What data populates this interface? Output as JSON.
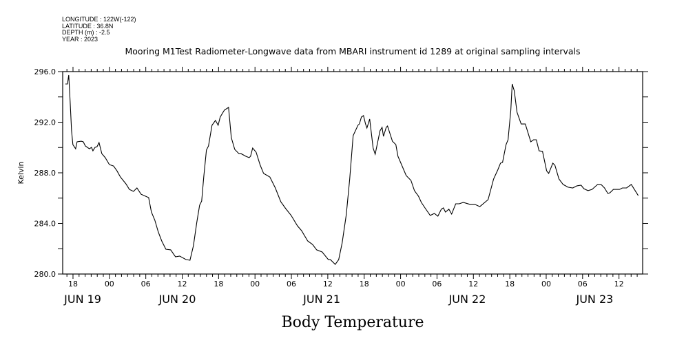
{
  "meta": {
    "longitude": "LONGITUDE : 122W(-122)",
    "latitude": "LATITUDE : 36.8N",
    "depth": "DEPTH (m) : -2.5",
    "year": "YEAR : 2023"
  },
  "chart_data": {
    "type": "line",
    "title": "Mooring M1Test Radiometer-Longwave data from MBARI instrument id 1289 at original sampling intervals",
    "xlabel": "Body Temperature",
    "ylabel": "Kelvin",
    "x_units": "hours since Jun 19 00:00, 2023",
    "xlim": [
      16.3,
      111.9
    ],
    "ylim": [
      280,
      296
    ],
    "line_color": "#000000",
    "y_ticks": [
      {
        "value": 280,
        "label": "280.0"
      },
      {
        "value": 284,
        "label": "284.0"
      },
      {
        "value": 288,
        "label": "288.0"
      },
      {
        "value": 292,
        "label": "292.0"
      },
      {
        "value": 296,
        "label": "296.0"
      }
    ],
    "x_ticks": [
      {
        "value": 18,
        "label": "18"
      },
      {
        "value": 24,
        "label": "00"
      },
      {
        "value": 30,
        "label": "06"
      },
      {
        "value": 36,
        "label": "12"
      },
      {
        "value": 42,
        "label": "18"
      },
      {
        "value": 48,
        "label": "00"
      },
      {
        "value": 54,
        "label": "06"
      },
      {
        "value": 60,
        "label": "12"
      },
      {
        "value": 66,
        "label": "18"
      },
      {
        "value": 72,
        "label": "00"
      },
      {
        "value": 78,
        "label": "06"
      },
      {
        "value": 84,
        "label": "12"
      },
      {
        "value": 90,
        "label": "18"
      },
      {
        "value": 96,
        "label": "00"
      },
      {
        "value": 102,
        "label": "06"
      },
      {
        "value": 108,
        "label": "12"
      }
    ],
    "day_labels": [
      {
        "value": 19.6,
        "label": "JUN 19"
      },
      {
        "value": 35.2,
        "label": "JUN 20"
      },
      {
        "value": 59.0,
        "label": "JUN 21"
      },
      {
        "value": 83.0,
        "label": "JUN 22"
      },
      {
        "value": 104.0,
        "label": "JUN 23"
      }
    ],
    "x": [
      16.74,
      17.08,
      17.3,
      17.53,
      17.76,
      17.98,
      18.44,
      18.67,
      19.35,
      19.69,
      20.03,
      20.71,
      21.05,
      21.28,
      21.62,
      21.96,
      22.3,
      22.75,
      23.32,
      24.0,
      24.68,
      25.25,
      25.82,
      26.72,
      27.29,
      27.97,
      28.54,
      29.22,
      30.47,
      30.92,
      31.49,
      32.06,
      32.63,
      33.31,
      34.1,
      34.9,
      35.58,
      36.6,
      37.28,
      37.85,
      38.41,
      38.87,
      39.21,
      39.55,
      40.0,
      40.34,
      40.91,
      41.48,
      41.93,
      42.27,
      42.95,
      43.64,
      44.09,
      44.66,
      45.34,
      45.68,
      46.47,
      47.04,
      47.27,
      47.61,
      48.18,
      48.86,
      49.42,
      50.45,
      51.35,
      52.26,
      53.06,
      53.96,
      54.99,
      55.67,
      56.69,
      57.48,
      58.16,
      59.07,
      60.09,
      60.43,
      61.23,
      61.8,
      62.36,
      63.04,
      63.61,
      64.18,
      64.97,
      65.2,
      65.54,
      65.88,
      66.22,
      66.45,
      66.9,
      67.47,
      67.81,
      68.61,
      68.95,
      69.17,
      69.63,
      69.85,
      70.65,
      71.22,
      71.56,
      72.92,
      73.71,
      74.28,
      74.96,
      75.42,
      76.1,
      76.89,
      77.57,
      78.14,
      78.71,
      79.05,
      79.39,
      79.96,
      80.41,
      81.09,
      81.66,
      82.34,
      83.47,
      84.27,
      85.06,
      86.42,
      87.33,
      88.01,
      88.47,
      88.81,
      89.38,
      89.72,
      90.17,
      90.4,
      90.74,
      91.19,
      91.87,
      92.55,
      93.01,
      93.46,
      93.92,
      94.37,
      94.82,
      95.39,
      96.07,
      96.41,
      97.09,
      97.43,
      98.11,
      98.79,
      99.59,
      100.38,
      101.07,
      101.75,
      102.2,
      102.88,
      103.56,
      104.47,
      105.04,
      105.61,
      106.17,
      106.51,
      107.08,
      108.1,
      108.56,
      109.24,
      110.03,
      111.17
    ],
    "y": [
      295.02,
      295.02,
      295.73,
      293.66,
      291.32,
      290.23,
      289.9,
      290.45,
      290.5,
      290.45,
      290.12,
      289.9,
      290.01,
      289.74,
      290.01,
      290.07,
      290.39,
      289.52,
      289.2,
      288.65,
      288.54,
      288.16,
      287.67,
      287.13,
      286.69,
      286.53,
      286.8,
      286.31,
      286.04,
      284.9,
      284.25,
      283.32,
      282.61,
      281.96,
      281.91,
      281.36,
      281.42,
      281.15,
      281.09,
      282.23,
      284.08,
      285.44,
      285.77,
      287.67,
      289.8,
      290.12,
      291.76,
      292.14,
      291.76,
      292.41,
      292.95,
      293.17,
      290.78,
      289.85,
      289.52,
      289.52,
      289.31,
      289.2,
      289.31,
      289.96,
      289.63,
      288.6,
      287.95,
      287.67,
      286.8,
      285.71,
      285.17,
      284.63,
      283.81,
      283.43,
      282.61,
      282.34,
      281.91,
      281.74,
      281.14,
      281.14,
      280.76,
      281.14,
      282.45,
      284.68,
      287.51,
      290.94,
      291.76,
      291.86,
      292.41,
      292.52,
      291.86,
      291.54,
      292.25,
      289.96,
      289.47,
      291.32,
      291.59,
      290.88,
      291.59,
      291.7,
      290.5,
      290.23,
      289.31,
      287.78,
      287.4,
      286.59,
      286.15,
      285.66,
      285.17,
      284.63,
      284.79,
      284.57,
      285.12,
      285.23,
      284.9,
      285.12,
      284.74,
      285.55,
      285.55,
      285.66,
      285.5,
      285.5,
      285.33,
      285.88,
      287.51,
      288.22,
      288.76,
      288.82,
      290.23,
      290.61,
      292.95,
      295.02,
      294.48,
      292.79,
      291.86,
      291.86,
      291.16,
      290.45,
      290.61,
      290.61,
      289.74,
      289.69,
      288.16,
      287.95,
      288.76,
      288.6,
      287.51,
      287.08,
      286.86,
      286.8,
      286.97,
      287.02,
      286.75,
      286.59,
      286.69,
      287.08,
      287.08,
      286.8,
      286.37,
      286.42,
      286.69,
      286.69,
      286.8,
      286.8,
      287.08,
      286.2
    ]
  }
}
